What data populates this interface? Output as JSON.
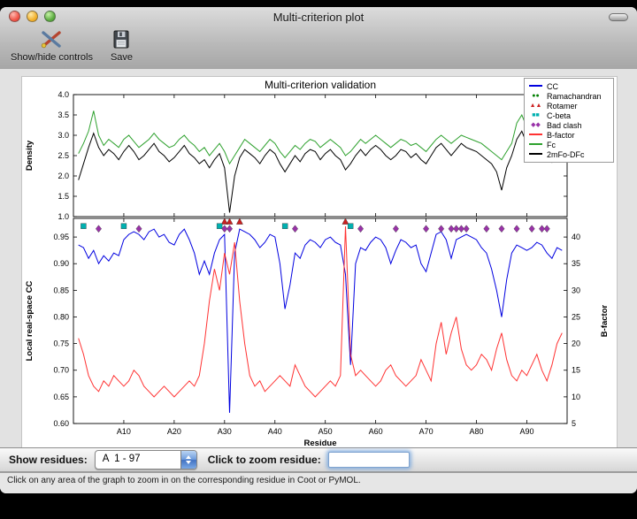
{
  "window": {
    "title": "Multi-criterion plot"
  },
  "toolbar": {
    "items": [
      {
        "label": "Show/hide controls",
        "icon": "controls-icon"
      },
      {
        "label": "Save",
        "icon": "save-icon"
      }
    ]
  },
  "controls": {
    "show_residues_label": "Show residues:",
    "chain_range_value": "A  1 - 97",
    "zoom_prompt_label": "Click to zoom residue:",
    "zoom_input_value": ""
  },
  "status_bar": {
    "text": "Click on any area of the graph to zoom in on the corresponding residue in Coot or PyMOL."
  },
  "legend": [
    {
      "label": "CC",
      "type": "line",
      "color": "#0000e0"
    },
    {
      "label": "Ramachandran",
      "type": "circle",
      "color": "#007f00"
    },
    {
      "label": "Rotamer",
      "type": "triangle",
      "color": "#cc2020"
    },
    {
      "label": "C-beta",
      "type": "square",
      "color": "#00b0b0"
    },
    {
      "label": "Bad clash",
      "type": "diamond",
      "color": "#9932a8"
    },
    {
      "label": "B-factor",
      "type": "line",
      "color": "#ff3232"
    },
    {
      "label": "Fc",
      "type": "line",
      "color": "#2ea12e"
    },
    {
      "label": "2mFo-DFc",
      "type": "line",
      "color": "#000000"
    }
  ],
  "chart_data": [
    {
      "type": "line",
      "title": "Multi-criterion validation",
      "ylabel": "Density",
      "ylim": [
        1.0,
        4.0
      ],
      "yticks": [
        1.0,
        1.5,
        2.0,
        2.5,
        3.0,
        3.5,
        4.0
      ],
      "xlim": [
        0,
        98
      ],
      "x_start_residue": 1,
      "series": [
        {
          "name": "Fc",
          "color": "#2ea12e",
          "values": [
            2.55,
            2.8,
            3.1,
            3.6,
            3.0,
            2.75,
            2.9,
            2.8,
            2.7,
            2.9,
            3.0,
            2.85,
            2.7,
            2.8,
            2.9,
            3.05,
            2.9,
            2.8,
            2.7,
            2.75,
            2.9,
            3.0,
            2.85,
            2.75,
            2.6,
            2.7,
            2.5,
            2.65,
            2.8,
            2.6,
            2.3,
            2.5,
            2.7,
            2.9,
            2.8,
            2.7,
            2.6,
            2.75,
            2.9,
            2.8,
            2.6,
            2.45,
            2.6,
            2.75,
            2.65,
            2.8,
            2.9,
            2.85,
            2.7,
            2.8,
            2.9,
            2.8,
            2.7,
            2.5,
            2.6,
            2.75,
            2.9,
            2.8,
            2.9,
            3.0,
            2.9,
            2.8,
            2.7,
            2.8,
            2.9,
            2.85,
            2.75,
            2.8,
            2.7,
            2.6,
            2.75,
            2.9,
            3.0,
            2.9,
            2.8,
            2.9,
            3.0,
            2.95,
            2.9,
            2.85,
            2.8,
            2.7,
            2.6,
            2.5,
            2.4,
            2.6,
            2.8,
            3.3,
            3.5,
            3.2,
            2.9,
            2.8,
            2.9,
            3.0,
            2.7,
            3.1,
            3.35
          ]
        },
        {
          "name": "2mFo-DFc",
          "color": "#000000",
          "values": [
            1.9,
            2.3,
            2.7,
            3.05,
            2.7,
            2.5,
            2.65,
            2.55,
            2.4,
            2.6,
            2.75,
            2.6,
            2.4,
            2.5,
            2.65,
            2.8,
            2.6,
            2.5,
            2.35,
            2.45,
            2.6,
            2.75,
            2.55,
            2.45,
            2.3,
            2.4,
            2.2,
            2.4,
            2.55,
            2.2,
            1.1,
            2.0,
            2.45,
            2.65,
            2.55,
            2.45,
            2.3,
            2.5,
            2.65,
            2.55,
            2.3,
            2.1,
            2.3,
            2.5,
            2.35,
            2.55,
            2.65,
            2.6,
            2.4,
            2.55,
            2.65,
            2.5,
            2.4,
            2.15,
            2.3,
            2.5,
            2.65,
            2.5,
            2.65,
            2.75,
            2.65,
            2.5,
            2.4,
            2.5,
            2.65,
            2.6,
            2.45,
            2.55,
            2.4,
            2.3,
            2.5,
            2.7,
            2.8,
            2.65,
            2.5,
            2.65,
            2.8,
            2.7,
            2.65,
            2.6,
            2.5,
            2.4,
            2.3,
            2.1,
            1.65,
            2.2,
            2.5,
            2.9,
            3.1,
            2.8,
            2.5,
            2.4,
            2.55,
            2.7,
            2.35,
            2.8,
            3.1
          ]
        }
      ]
    },
    {
      "type": "line",
      "xlabel": "Residue",
      "ylabel_left": "Local real-space CC",
      "ylabel_right": "B-factor",
      "ylim_left": [
        0.6,
        0.985
      ],
      "yticks_left": [
        0.6,
        0.65,
        0.7,
        0.75,
        0.8,
        0.85,
        0.9,
        0.95
      ],
      "ylim_right": [
        5,
        43.5
      ],
      "yticks_right": [
        5,
        10,
        15,
        20,
        25,
        30,
        35,
        40
      ],
      "xlim": [
        0,
        98
      ],
      "xticks": [
        10,
        20,
        30,
        40,
        50,
        60,
        70,
        80,
        90
      ],
      "xtick_labels": [
        "A10",
        "A20",
        "A30",
        "A40",
        "A50",
        "A60",
        "A70",
        "A80",
        "A90"
      ],
      "x_start_residue": 1,
      "series": [
        {
          "name": "CC",
          "axis": "left",
          "color": "#0000e0",
          "values": [
            0.935,
            0.93,
            0.91,
            0.925,
            0.9,
            0.915,
            0.905,
            0.92,
            0.915,
            0.945,
            0.955,
            0.96,
            0.955,
            0.945,
            0.96,
            0.965,
            0.95,
            0.955,
            0.94,
            0.935,
            0.955,
            0.965,
            0.945,
            0.92,
            0.88,
            0.905,
            0.88,
            0.92,
            0.945,
            0.955,
            0.62,
            0.92,
            0.965,
            0.96,
            0.955,
            0.945,
            0.93,
            0.94,
            0.955,
            0.95,
            0.9,
            0.815,
            0.86,
            0.92,
            0.91,
            0.935,
            0.945,
            0.94,
            0.93,
            0.945,
            0.95,
            0.94,
            0.935,
            0.88,
            0.71,
            0.9,
            0.93,
            0.925,
            0.94,
            0.95,
            0.945,
            0.93,
            0.9,
            0.925,
            0.945,
            0.94,
            0.93,
            0.935,
            0.9,
            0.885,
            0.92,
            0.955,
            0.96,
            0.945,
            0.91,
            0.945,
            0.95,
            0.955,
            0.95,
            0.945,
            0.93,
            0.92,
            0.89,
            0.85,
            0.8,
            0.87,
            0.92,
            0.935,
            0.93,
            0.925,
            0.93,
            0.94,
            0.935,
            0.92,
            0.91,
            0.93,
            0.925
          ]
        },
        {
          "name": "B-factor",
          "axis": "right",
          "color": "#ff3232",
          "values": [
            21,
            18,
            14,
            12,
            11,
            13,
            12,
            14,
            13,
            12,
            13,
            15,
            14,
            12,
            11,
            10,
            11,
            12,
            11,
            10,
            11,
            12,
            13,
            12,
            14,
            20,
            28,
            34,
            30,
            37,
            33,
            39,
            28,
            20,
            14,
            12,
            13,
            11,
            12,
            13,
            14,
            13,
            12,
            16,
            14,
            12,
            11,
            10,
            11,
            12,
            13,
            12,
            14,
            42,
            18,
            14,
            15,
            14,
            13,
            12,
            13,
            15,
            16,
            14,
            13,
            12,
            13,
            14,
            17,
            15,
            13,
            20,
            24,
            18,
            22,
            25,
            19,
            16,
            15,
            16,
            18,
            17,
            15,
            19,
            22,
            17,
            14,
            13,
            15,
            14,
            16,
            18,
            15,
            13,
            16,
            20,
            22
          ]
        }
      ],
      "outlier_markers": [
        {
          "name": "Ramachandran",
          "shape": "circle",
          "color": "#007f00",
          "residues": []
        },
        {
          "name": "Rotamer",
          "shape": "triangle",
          "color": "#cc2020",
          "residues": [
            30,
            31,
            33,
            54
          ]
        },
        {
          "name": "C-beta",
          "shape": "square",
          "color": "#00b0b0",
          "residues": [
            2,
            10,
            29,
            42,
            55
          ]
        },
        {
          "name": "Bad clash",
          "shape": "diamond",
          "color": "#9932a8",
          "residues": [
            5,
            13,
            30,
            31,
            44,
            57,
            64,
            70,
            73,
            75,
            76,
            77,
            78,
            82,
            85,
            88,
            91,
            93,
            94
          ]
        }
      ]
    }
  ]
}
